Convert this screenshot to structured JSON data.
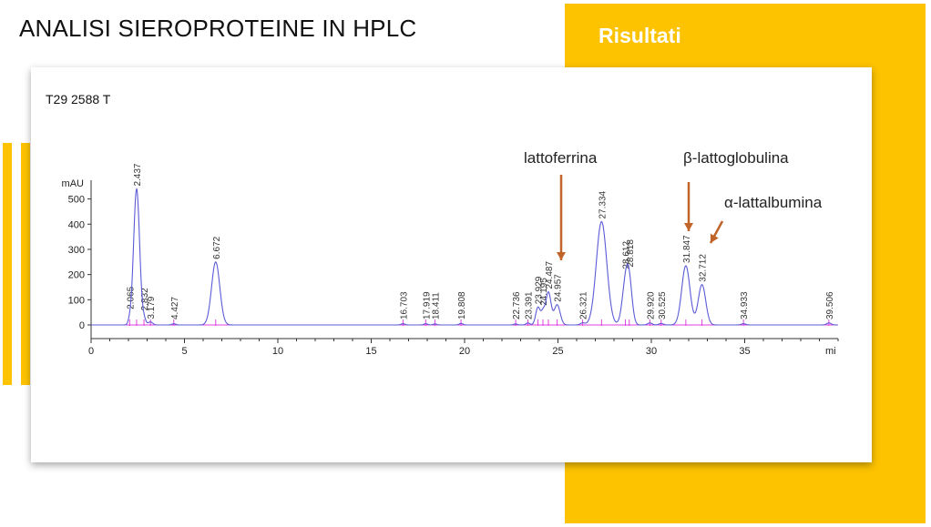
{
  "slide": {
    "title": "ANALISI SIEROPROTEINE IN HPLC",
    "section": "Risultati",
    "sample_id": "T29 2588 T"
  },
  "colors": {
    "accent": "#FDC300",
    "trace": "#5B5BD6",
    "baseline": "#E040E0",
    "arrow": "#C0642A"
  },
  "annotations": [
    {
      "label": "lattoferrina",
      "target_rt": 24.957
    },
    {
      "label": "β-lattoglobulina",
      "target_rt": 31.847
    },
    {
      "label": "α-lattalbumina",
      "target_rt": 32.712
    }
  ],
  "chart_data": {
    "type": "line",
    "ylabel": "mAU",
    "xlabel": "mi",
    "xlim": [
      0,
      40
    ],
    "ylim": [
      0,
      560
    ],
    "x_ticks": [
      0,
      5,
      10,
      15,
      20,
      25,
      30,
      35
    ],
    "y_ticks": [
      0,
      100,
      200,
      300,
      400,
      500
    ],
    "peaks": [
      {
        "rt": 2.065,
        "label": "2.065",
        "height": 15,
        "width": 0.08
      },
      {
        "rt": 2.437,
        "label": "2.437",
        "height": 540,
        "width": 0.16
      },
      {
        "rt": 2.832,
        "label": "2.832",
        "height": 20,
        "width": 0.1
      },
      {
        "rt": 3.179,
        "label": "3.179",
        "height": 12,
        "width": 0.12
      },
      {
        "rt": 4.427,
        "label": "4.427",
        "height": 5,
        "width": 0.1
      },
      {
        "rt": 6.672,
        "label": "6.672",
        "height": 250,
        "width": 0.22
      },
      {
        "rt": 16.703,
        "label": "16.703",
        "height": 5,
        "width": 0.1
      },
      {
        "rt": 17.919,
        "label": "17.919",
        "height": 5,
        "width": 0.1
      },
      {
        "rt": 18.411,
        "label": "18.411",
        "height": 4,
        "width": 0.1
      },
      {
        "rt": 19.808,
        "label": "19.808",
        "height": 6,
        "width": 0.1
      },
      {
        "rt": 22.736,
        "label": "22.736",
        "height": 4,
        "width": 0.1
      },
      {
        "rt": 23.391,
        "label": "23.391",
        "height": 8,
        "width": 0.1
      },
      {
        "rt": 23.929,
        "label": "23.929",
        "height": 70,
        "width": 0.12
      },
      {
        "rt": 24.195,
        "label": "24.195",
        "height": 45,
        "width": 0.1
      },
      {
        "rt": 24.487,
        "label": "24.487",
        "height": 130,
        "width": 0.14
      },
      {
        "rt": 24.957,
        "label": "24.957",
        "height": 80,
        "width": 0.16
      },
      {
        "rt": 26.321,
        "label": "26.321",
        "height": 8,
        "width": 0.12
      },
      {
        "rt": 27.334,
        "label": "27.334",
        "height": 410,
        "width": 0.28
      },
      {
        "rt": 28.612,
        "label": "28.612",
        "height": 150,
        "width": 0.18
      },
      {
        "rt": 28.818,
        "label": "28.818",
        "height": 140,
        "width": 0.16
      },
      {
        "rt": 29.92,
        "label": "29.920",
        "height": 8,
        "width": 0.12
      },
      {
        "rt": 30.525,
        "label": "30.525",
        "height": 6,
        "width": 0.12
      },
      {
        "rt": 31.847,
        "label": "31.847",
        "height": 235,
        "width": 0.22
      },
      {
        "rt": 32.712,
        "label": "32.712",
        "height": 160,
        "width": 0.2
      },
      {
        "rt": 34.933,
        "label": "34.933",
        "height": 5,
        "width": 0.12
      },
      {
        "rt": 39.506,
        "label": "39.506",
        "height": 8,
        "width": 0.12
      }
    ]
  }
}
